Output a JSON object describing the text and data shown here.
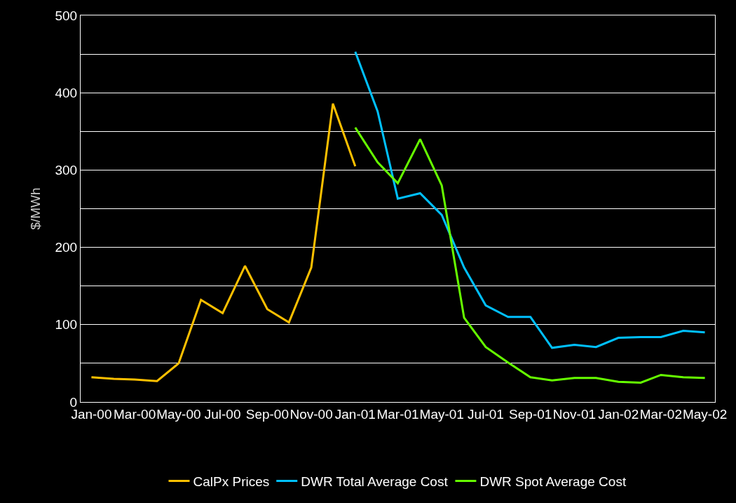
{
  "chart_data": {
    "type": "line",
    "ylabel": "$/MWh",
    "x": [
      "2000-01",
      "2000-02",
      "2000-03",
      "2000-04",
      "2000-05",
      "2000-06",
      "2000-07",
      "2000-08",
      "2000-09",
      "2000-10",
      "2000-11",
      "2000-12",
      "2001-01",
      "2001-02",
      "2001-03",
      "2001-04",
      "2001-05",
      "2001-06",
      "2001-07",
      "2001-08",
      "2001-09",
      "2001-10",
      "2001-11",
      "2001-12",
      "2002-01",
      "2002-02",
      "2002-03",
      "2002-04",
      "2002-05"
    ],
    "series": [
      {
        "name": "CalPx Prices",
        "color": "#ffc000",
        "values": [
          32,
          30,
          29,
          27,
          50,
          132,
          115,
          176,
          120,
          103,
          174,
          386,
          305,
          null,
          null,
          null,
          null,
          null,
          null,
          null,
          null,
          null,
          null,
          null,
          null,
          null,
          null,
          null,
          null
        ]
      },
      {
        "name": "DWR Total Average Cost",
        "color": "#00c0ff",
        "values": [
          null,
          null,
          null,
          null,
          null,
          null,
          null,
          null,
          null,
          null,
          null,
          null,
          453,
          376,
          263,
          270,
          242,
          174,
          125,
          110,
          110,
          70,
          74,
          71,
          83,
          84,
          84,
          92,
          90
        ]
      },
      {
        "name": "DWR Spot Average Cost",
        "color": "#66ff00",
        "values": [
          null,
          null,
          null,
          null,
          null,
          null,
          null,
          null,
          null,
          null,
          null,
          null,
          355,
          310,
          283,
          340,
          280,
          109,
          71,
          51,
          32,
          28,
          31,
          31,
          26,
          25,
          35,
          32,
          31
        ]
      }
    ],
    "xlim": [
      "1999-12-17",
      "2002-05-15"
    ],
    "xticks": [
      {
        "value": "2000-01",
        "label": "Jan-00"
      },
      {
        "value": "2000-03",
        "label": "Mar-00"
      },
      {
        "value": "2000-05",
        "label": "May-00"
      },
      {
        "value": "2000-07",
        "label": "Jul-00"
      },
      {
        "value": "2000-09",
        "label": "Sep-00"
      },
      {
        "value": "2000-11",
        "label": "Nov-00"
      },
      {
        "value": "2001-01",
        "label": "Jan-01"
      },
      {
        "value": "2001-03",
        "label": "Mar-01"
      },
      {
        "value": "2001-05",
        "label": "May-01"
      },
      {
        "value": "2001-07",
        "label": "Jul-01"
      },
      {
        "value": "2001-09",
        "label": "Sep-01"
      },
      {
        "value": "2001-11",
        "label": "Nov-01"
      },
      {
        "value": "2002-01",
        "label": "Jan-02"
      },
      {
        "value": "2002-03",
        "label": "Mar-02"
      },
      {
        "value": "2002-05",
        "label": "May-02"
      }
    ],
    "ylim": [
      0,
      500
    ],
    "yticks": [
      0,
      {
        "value": 50,
        "label": null
      },
      100,
      {
        "value": 150,
        "label": null
      },
      200,
      {
        "value": 250,
        "label": null
      },
      300,
      {
        "value": 350,
        "label": null
      },
      400,
      {
        "value": 450,
        "label": null
      },
      500
    ],
    "grid": "y",
    "legend": "bottom",
    "marker": "none",
    "line_style": "solid"
  }
}
